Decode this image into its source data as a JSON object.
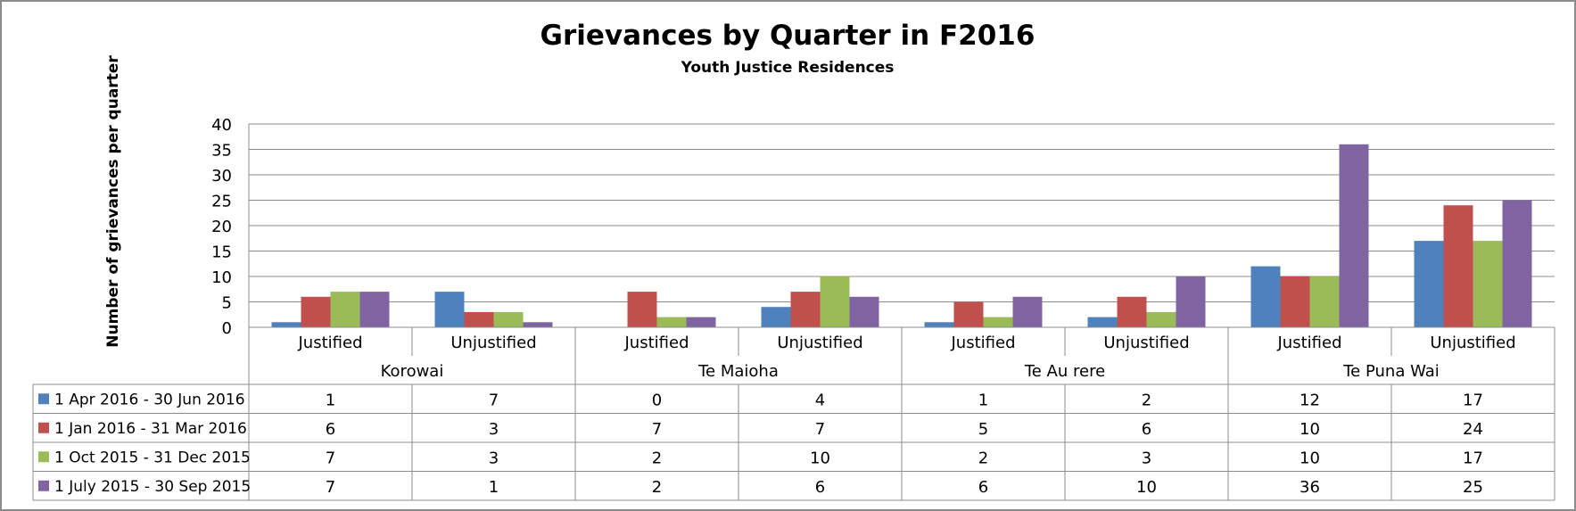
{
  "chart_data": {
    "type": "bar",
    "title": "Grievances by Quarter in F2016",
    "subtitle": "Youth Justice Residences",
    "ylabel": "Number of grievances per quarter",
    "xlabel": "",
    "ylim": [
      0,
      40
    ],
    "yticks": [
      0,
      5,
      10,
      15,
      20,
      25,
      30,
      35,
      40
    ],
    "grid": true,
    "legend_placement": "data-table-left",
    "groups": [
      {
        "name": "Korowai",
        "categories": [
          "Justified",
          "Unjustified"
        ]
      },
      {
        "name": "Te Maioha",
        "categories": [
          "Justified",
          "Unjustified"
        ]
      },
      {
        "name": "Te Au rere",
        "categories": [
          "Justified",
          "Unjustified"
        ]
      },
      {
        "name": "Te Puna Wai",
        "categories": [
          "Justified",
          "Unjustified"
        ]
      }
    ],
    "categories": [
      "Justified",
      "Unjustified",
      "Justified",
      "Unjustified",
      "Justified",
      "Unjustified",
      "Justified",
      "Unjustified"
    ],
    "series": [
      {
        "name": "1 Apr 2016 - 30 Jun 2016",
        "color": "#4f81bd",
        "values": [
          1,
          7,
          0,
          4,
          1,
          2,
          12,
          17
        ]
      },
      {
        "name": "1 Jan 2016 - 31 Mar 2016",
        "color": "#c0504d",
        "values": [
          6,
          3,
          7,
          7,
          5,
          6,
          10,
          24
        ]
      },
      {
        "name": "1 Oct 2015 - 31 Dec 2015",
        "color": "#9bbb59",
        "values": [
          7,
          3,
          2,
          10,
          2,
          3,
          10,
          17
        ]
      },
      {
        "name": "1 July 2015 - 30 Sep 2015",
        "color": "#8064a2",
        "values": [
          7,
          1,
          2,
          6,
          6,
          10,
          36,
          25
        ]
      }
    ]
  }
}
